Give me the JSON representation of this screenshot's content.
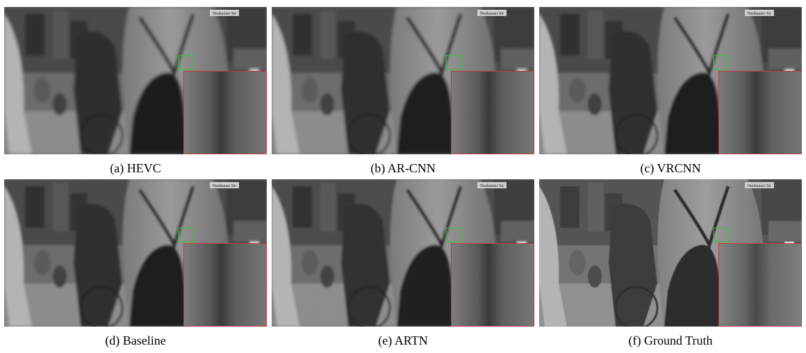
{
  "figure": {
    "panels": [
      {
        "caption": "(a) HEVC",
        "sign": "Neuhauser Str",
        "blur": 2.4,
        "noise": 0.0
      },
      {
        "caption": "(b) AR-CNN",
        "sign": "Neuhauser Str",
        "blur": 2.0,
        "noise": 0.05
      },
      {
        "caption": "(c) VRCNN",
        "sign": "Neuhauser Str",
        "blur": 1.8,
        "noise": 0.05
      },
      {
        "caption": "(d) Baseline",
        "sign": "Neuhauser Str",
        "blur": 1.9,
        "noise": 0.05
      },
      {
        "caption": "(e) ARTN",
        "sign": "Neuhauser Str",
        "blur": 1.5,
        "noise": 0.1
      },
      {
        "caption": "(f) Ground Truth",
        "sign": "Neuhauser Str",
        "blur": 0.4,
        "noise": 0.35
      }
    ],
    "colors": {
      "roi_box": "#39c439",
      "zoom_border": "#c0393b"
    }
  }
}
